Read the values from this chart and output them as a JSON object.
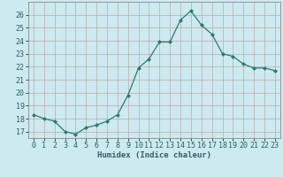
{
  "x": [
    0,
    1,
    2,
    3,
    4,
    5,
    6,
    7,
    8,
    9,
    10,
    11,
    12,
    13,
    14,
    15,
    16,
    17,
    18,
    19,
    20,
    21,
    22,
    23
  ],
  "y": [
    18.3,
    18.0,
    17.8,
    17.0,
    16.8,
    17.3,
    17.5,
    17.8,
    18.3,
    19.8,
    21.9,
    22.6,
    23.9,
    23.9,
    25.6,
    26.3,
    25.2,
    24.5,
    23.0,
    22.8,
    22.2,
    21.9,
    21.9,
    21.7
  ],
  "line_color": "#2d7a6e",
  "marker": "D",
  "marker_size": 2.0,
  "bg_color": "#cdeaf0",
  "grid_color": "#c0a8a8",
  "xlabel": "Humidex (Indice chaleur)",
  "ylim": [
    16.5,
    27.0
  ],
  "yticks": [
    17,
    18,
    19,
    20,
    21,
    22,
    23,
    24,
    25,
    26
  ],
  "xticks": [
    0,
    1,
    2,
    3,
    4,
    5,
    6,
    7,
    8,
    9,
    10,
    11,
    12,
    13,
    14,
    15,
    16,
    17,
    18,
    19,
    20,
    21,
    22,
    23
  ],
  "xlabel_fontsize": 6.5,
  "tick_fontsize": 6.0
}
